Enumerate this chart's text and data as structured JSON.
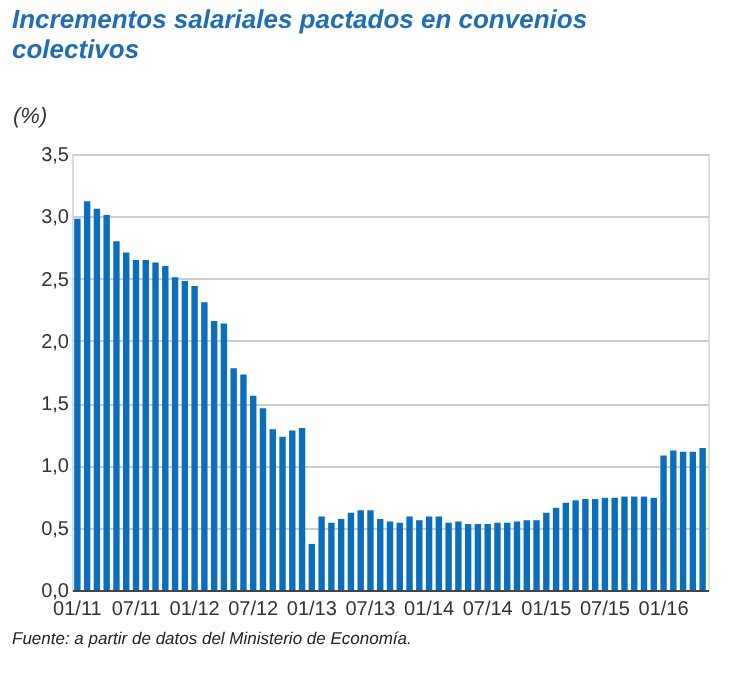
{
  "chart_data": {
    "type": "bar",
    "title": [
      "Incrementos salariales pactados en convenios",
      "colectivos"
    ],
    "ylabel": "(%)",
    "categories": [
      "01/11",
      null,
      null,
      null,
      null,
      null,
      "07/11",
      null,
      null,
      null,
      null,
      null,
      "01/12",
      null,
      null,
      null,
      null,
      null,
      "07/12",
      null,
      null,
      null,
      null,
      null,
      "01/13",
      null,
      null,
      null,
      null,
      null,
      "07/13",
      null,
      null,
      null,
      null,
      null,
      "01/14",
      null,
      null,
      null,
      null,
      null,
      "07/14",
      null,
      null,
      null,
      null,
      null,
      "01/15",
      null,
      null,
      null,
      null,
      null,
      "07/15",
      null,
      null,
      null,
      null,
      null,
      "01/16",
      null,
      null,
      null,
      null
    ],
    "values": [
      2.98,
      3.12,
      3.06,
      3.01,
      2.8,
      2.71,
      2.65,
      2.65,
      2.63,
      2.6,
      2.51,
      2.48,
      2.44,
      2.31,
      2.16,
      2.14,
      1.78,
      1.73,
      1.56,
      1.46,
      1.29,
      1.23,
      1.28,
      1.3,
      0.37,
      0.59,
      0.54,
      0.57,
      0.62,
      0.64,
      0.64,
      0.57,
      0.55,
      0.54,
      0.59,
      0.56,
      0.59,
      0.59,
      0.54,
      0.55,
      0.53,
      0.53,
      0.53,
      0.54,
      0.54,
      0.55,
      0.56,
      0.56,
      0.62,
      0.66,
      0.7,
      0.72,
      0.73,
      0.73,
      0.74,
      0.74,
      0.75,
      0.75,
      0.75,
      0.74,
      1.08,
      1.12,
      1.11,
      1.11,
      1.14
    ],
    "color": "#0a6ebd",
    "ylim": [
      0,
      3.5
    ],
    "yticks": [
      {
        "value": 0,
        "label": "0,0"
      },
      {
        "value": 0.5,
        "label": "0,5"
      },
      {
        "value": 1,
        "label": "1,0"
      },
      {
        "value": 1.5,
        "label": "1,5"
      },
      {
        "value": 2,
        "label": "2,0"
      },
      {
        "value": 2.5,
        "label": "2,5"
      },
      {
        "value": 3,
        "label": "3,0"
      },
      {
        "value": 3.5,
        "label": "3,5"
      }
    ],
    "grid": "y",
    "annotations": [
      "Fuente: a partir de datos del Ministerio de Economía."
    ]
  }
}
